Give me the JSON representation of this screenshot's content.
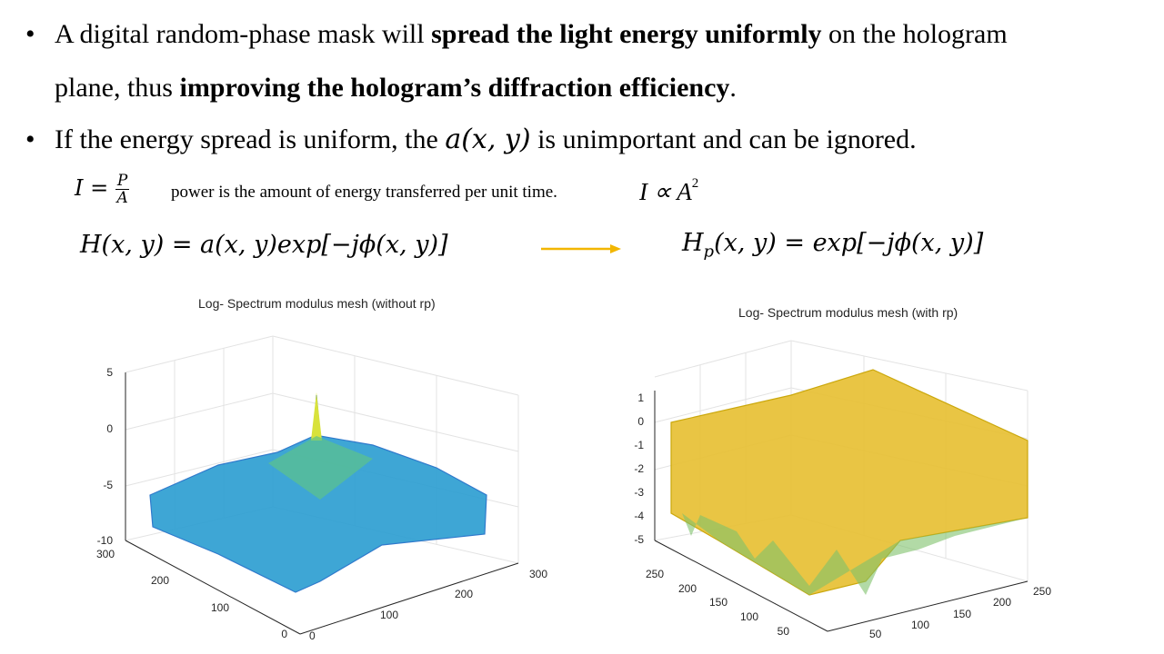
{
  "bullets": [
    {
      "marker": "•",
      "line1": {
        "t1": "A digital random-phase mask will ",
        "b1": "spread the light energy uniformly",
        "t2": " on the hologram"
      },
      "line2": {
        "t1": "plane, thus ",
        "b1": "improving the hologram’s diffraction efficiency",
        "t2": "."
      }
    },
    {
      "marker": "•",
      "t1": "If the energy spread is uniform, the ",
      "math": "a(x, y)",
      "t2": " is unimportant and can be ignored."
    }
  ],
  "equations": {
    "intensity_lhs": "I =",
    "intensity_num": "P",
    "intensity_den": "A",
    "power_note": "power is the amount of energy  transferred  per unit time.",
    "proportional": "I ∝ A",
    "proportional_exp": "2",
    "hologram_left": "H(x, y) = a(x, y)exp[−jϕ(x, y)]",
    "hologram_right_H": "H",
    "hologram_right_sub": "p",
    "hologram_right_rest": "(x, y) = exp[−jϕ(x, y)]"
  },
  "colors": {
    "arrow": "#f2b600",
    "left_surface": "#2e9fd2",
    "right_surface": "#e8c23a"
  },
  "chart_data": [
    {
      "type": "surface",
      "title": "Log- Spectrum modulus mesh (without rp)",
      "zticks": [
        "5",
        "0",
        "-5",
        "-10"
      ],
      "yticks": [
        "300",
        "200",
        "100",
        "0"
      ],
      "xticks": [
        "0",
        "100",
        "200",
        "300"
      ],
      "zlim": [
        -10,
        5
      ],
      "grid": true
    },
    {
      "type": "surface",
      "title": "Log- Spectrum modulus mesh (with rp)",
      "zticks": [
        "1",
        "0",
        "-1",
        "-2",
        "-3",
        "-4",
        "-5"
      ],
      "yticks": [
        "250",
        "200",
        "150",
        "100",
        "50"
      ],
      "xticks": [
        "50",
        "100",
        "150",
        "200",
        "250"
      ],
      "zlim": [
        -5,
        1
      ],
      "grid": true
    }
  ]
}
